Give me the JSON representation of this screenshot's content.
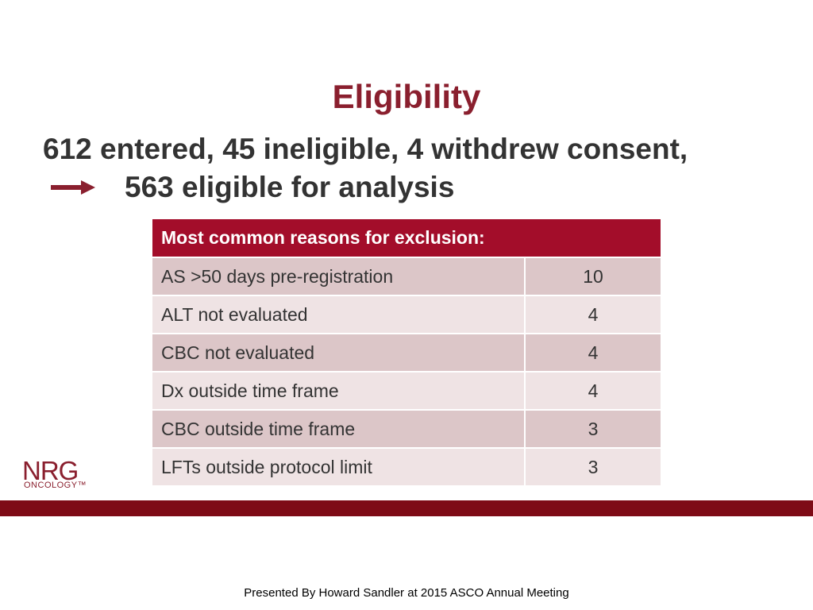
{
  "slide": {
    "title": "Eligibility",
    "summary_line1": "612 entered, 45 ineligible, 4 withdrew consent,",
    "summary_line2": "563 eligible for analysis",
    "arrow_icon": "right-arrow-icon",
    "colors": {
      "accent": "#8a1f2e",
      "header": "#a30d2a",
      "band": "#7e0b16",
      "row_dark": "#dcc6c8",
      "row_light": "#efe3e4"
    }
  },
  "table": {
    "header": "Most common reasons for exclusion:",
    "rows": [
      {
        "reason": "AS >50 days pre-registration",
        "count": "10"
      },
      {
        "reason": "ALT not evaluated",
        "count": "4"
      },
      {
        "reason": "CBC not evaluated",
        "count": "4"
      },
      {
        "reason": "Dx outside time frame",
        "count": "4"
      },
      {
        "reason": "CBC outside time frame",
        "count": "3"
      },
      {
        "reason": "LFTs outside protocol limit",
        "count": "3"
      }
    ]
  },
  "logo": {
    "name": "NRG",
    "sub": "ONCOLOGY™"
  },
  "footer": {
    "text": "Presented By Howard Sandler at 2015 ASCO Annual Meeting"
  }
}
